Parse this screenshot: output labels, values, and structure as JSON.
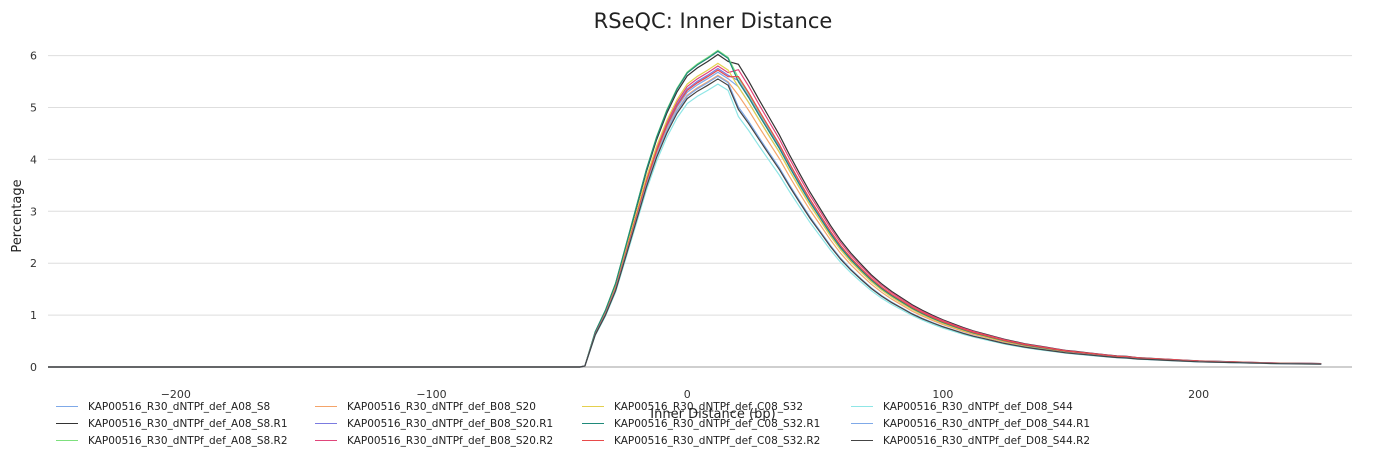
{
  "chart_data": {
    "type": "line",
    "title": "RSeQC: Inner Distance",
    "xlabel": "Inner Distance (bp)",
    "ylabel": "Percentage",
    "xlim": [
      -250,
      260
    ],
    "ylim": [
      0,
      6.3
    ],
    "xticks": [
      -200,
      -100,
      0,
      100,
      200
    ],
    "yticks": [
      0,
      1,
      2,
      3,
      4,
      5,
      6
    ],
    "grid": "horizontal",
    "legend": "bottom",
    "series": [
      {
        "name": "KAP00516_R30_dNTPf_def_A08_S8",
        "color": "#7fa9e8",
        "peak": 5.68,
        "offset": 0.02
      },
      {
        "name": "KAP00516_R30_dNTPf_def_A08_S8.R1",
        "color": "#333333",
        "peak": 6.02,
        "offset": 0.04
      },
      {
        "name": "KAP00516_R30_dNTPf_def_A08_S8.R2",
        "color": "#7de07d",
        "peak": 6.1,
        "offset": -0.02
      },
      {
        "name": "KAP00516_R30_dNTPf_def_B08_S20",
        "color": "#f4a46a",
        "peak": 5.62,
        "offset": 0.0
      },
      {
        "name": "KAP00516_R30_dNTPf_def_B08_S20.R1",
        "color": "#7b7be0",
        "peak": 5.75,
        "offset": 0.03
      },
      {
        "name": "KAP00516_R30_dNTPf_def_B08_S20.R2",
        "color": "#e0457a",
        "peak": 5.8,
        "offset": 0.06
      },
      {
        "name": "KAP00516_R30_dNTPf_def_C08_S32",
        "color": "#e4d04e",
        "peak": 5.85,
        "offset": -0.01
      },
      {
        "name": "KAP00516_R30_dNTPf_def_C08_S32.R1",
        "color": "#1f8a7a",
        "peak": 6.08,
        "offset": -0.03
      },
      {
        "name": "KAP00516_R30_dNTPf_def_C08_S32.R2",
        "color": "#e84a4a",
        "peak": 5.72,
        "offset": 0.05
      },
      {
        "name": "KAP00516_R30_dNTPf_def_D08_S44",
        "color": "#8fe6e6",
        "peak": 5.45,
        "offset": -0.05
      },
      {
        "name": "KAP00516_R30_dNTPf_def_D08_S44.R1",
        "color": "#7fa9e8",
        "peak": 5.6,
        "offset": -0.04
      },
      {
        "name": "KAP00516_R30_dNTPf_def_D08_S44.R2",
        "color": "#444444",
        "peak": 5.55,
        "offset": -0.04
      }
    ],
    "base_curve": {
      "x": [
        -250,
        -42,
        -40,
        -36,
        -32,
        -28,
        -24,
        -20,
        -16,
        -12,
        -8,
        -4,
        0,
        4,
        8,
        12,
        16,
        20,
        24,
        28,
        32,
        36,
        40,
        44,
        48,
        52,
        56,
        60,
        64,
        68,
        72,
        76,
        80,
        84,
        88,
        92,
        96,
        100,
        104,
        108,
        112,
        116,
        120,
        124,
        128,
        132,
        136,
        140,
        144,
        148,
        152,
        156,
        160,
        164,
        168,
        172,
        176,
        180,
        184,
        188,
        192,
        196,
        200,
        204,
        208,
        212,
        216,
        220,
        224,
        228,
        232,
        236,
        240,
        244,
        248
      ],
      "y": [
        0,
        0,
        0.02,
        0.65,
        1.05,
        1.55,
        2.25,
        2.95,
        3.65,
        4.25,
        4.75,
        5.15,
        5.45,
        5.6,
        5.72,
        5.85,
        5.72,
        5.45,
        5.15,
        4.82,
        4.5,
        4.18,
        3.82,
        3.48,
        3.15,
        2.85,
        2.55,
        2.28,
        2.05,
        1.85,
        1.66,
        1.5,
        1.36,
        1.24,
        1.12,
        1.02,
        0.93,
        0.85,
        0.78,
        0.71,
        0.65,
        0.6,
        0.55,
        0.5,
        0.46,
        0.42,
        0.39,
        0.36,
        0.33,
        0.3,
        0.28,
        0.26,
        0.24,
        0.22,
        0.2,
        0.19,
        0.17,
        0.16,
        0.15,
        0.14,
        0.13,
        0.12,
        0.11,
        0.105,
        0.1,
        0.095,
        0.09,
        0.085,
        0.08,
        0.075,
        0.07,
        0.068,
        0.066,
        0.064,
        0.062
      ]
    }
  }
}
